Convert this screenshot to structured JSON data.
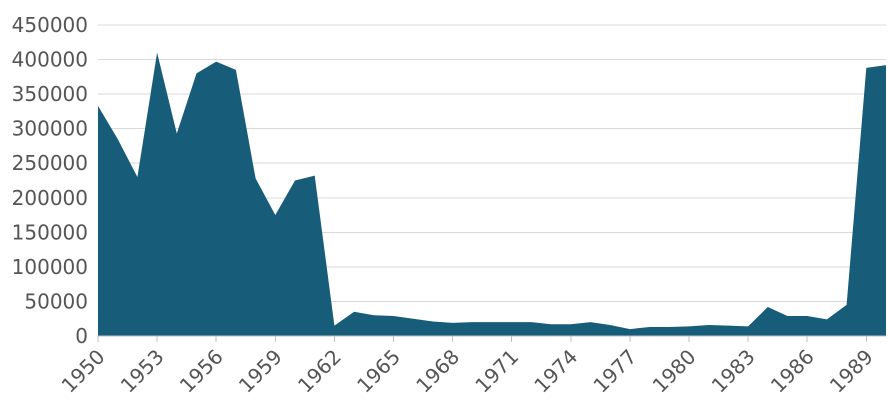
{
  "chart_data": {
    "type": "area",
    "title": "",
    "xlabel": "",
    "ylabel": "",
    "x": [
      1950,
      1951,
      1952,
      1953,
      1954,
      1955,
      1956,
      1957,
      1958,
      1959,
      1960,
      1961,
      1962,
      1963,
      1964,
      1965,
      1966,
      1967,
      1968,
      1969,
      1970,
      1971,
      1972,
      1973,
      1974,
      1975,
      1976,
      1977,
      1978,
      1979,
      1980,
      1981,
      1982,
      1983,
      1984,
      1985,
      1986,
      1987,
      1988,
      1989,
      1990
    ],
    "series": [
      {
        "values": [
          333000,
          285000,
          230000,
          410000,
          293000,
          380000,
          397000,
          385000,
          228000,
          175000,
          225000,
          232000,
          15000,
          35000,
          30000,
          29000,
          25000,
          21000,
          19000,
          20000,
          20000,
          20000,
          20000,
          17000,
          17000,
          20000,
          16000,
          10000,
          13000,
          13000,
          14000,
          16000,
          15000,
          14000,
          42000,
          29000,
          29000,
          24000,
          45000,
          388000,
          392000
        ]
      }
    ],
    "xlim": [
      1950,
      1990
    ],
    "ylim": [
      0,
      450000
    ],
    "y_ticks": [
      0,
      50000,
      100000,
      150000,
      200000,
      250000,
      300000,
      350000,
      400000,
      450000
    ],
    "x_ticks": [
      1950,
      1953,
      1956,
      1959,
      1962,
      1965,
      1968,
      1971,
      1974,
      1977,
      1980,
      1983,
      1986,
      1989
    ],
    "grid": true,
    "legend": "none",
    "colors": {
      "area_fill": "#175d7a",
      "grid": "#d9d9d9",
      "tick_text": "#555555"
    }
  }
}
